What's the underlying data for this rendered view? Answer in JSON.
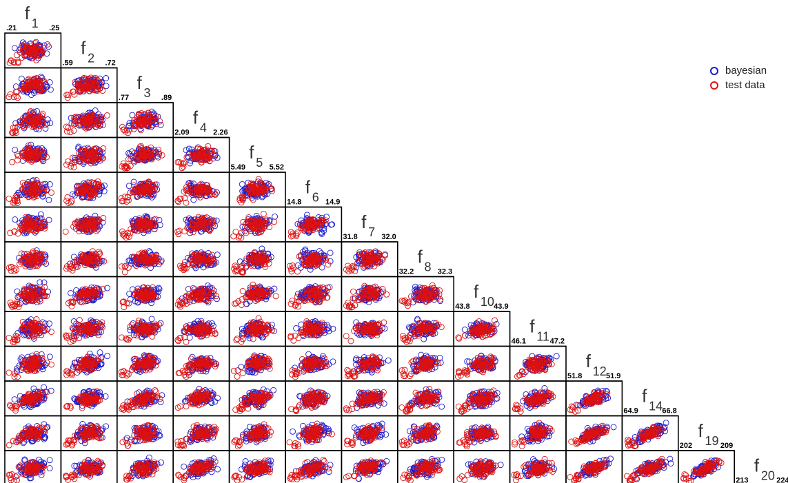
{
  "chart_data": {
    "type": "scatter",
    "layout": "lower-triangular scatter-plot matrix",
    "variables": [
      {
        "name": "f",
        "subscript": "1",
        "min_label": ".21",
        "max_label": ".25"
      },
      {
        "name": "f",
        "subscript": "2",
        "min_label": ".59",
        "max_label": ".72"
      },
      {
        "name": "f",
        "subscript": "3",
        "min_label": ".77",
        "max_label": ".89"
      },
      {
        "name": "f",
        "subscript": "4",
        "min_label": "2.09",
        "max_label": "2.26"
      },
      {
        "name": "f",
        "subscript": "5",
        "min_label": "5.49",
        "max_label": "5.52"
      },
      {
        "name": "f",
        "subscript": "6",
        "min_label": "14.8",
        "max_label": "14.9"
      },
      {
        "name": "f",
        "subscript": "7",
        "min_label": "31.8",
        "max_label": "32.0"
      },
      {
        "name": "f",
        "subscript": "8",
        "min_label": "32.2",
        "max_label": "32.3"
      },
      {
        "name": "f",
        "subscript": "10",
        "min_label": "43.8",
        "max_label": "43.9"
      },
      {
        "name": "f",
        "subscript": "11",
        "min_label": "46.1",
        "max_label": "47.2"
      },
      {
        "name": "f",
        "subscript": "12",
        "min_label": "51.8",
        "max_label": "51.9"
      },
      {
        "name": "f",
        "subscript": "14",
        "min_label": "64.9",
        "max_label": "66.8"
      },
      {
        "name": "f",
        "subscript": "19",
        "min_label": "202",
        "max_label": "209"
      },
      {
        "name": "f",
        "subscript": "20",
        "min_label": "213",
        "max_label": "224"
      }
    ],
    "series": [
      {
        "name": "bayesian",
        "color": "#1a1acc",
        "marker": "open-circle"
      },
      {
        "name": "test data",
        "color": "#dd1111",
        "marker": "open-circle"
      }
    ],
    "points_per_series_per_panel": 70,
    "note_values": "each panel shows a cloud of ~70 open-circle points per series; red test data shows more outliers toward lower-left",
    "grid": false,
    "legend": {
      "position": "top-right"
    }
  },
  "legend": {
    "items": [
      {
        "label": "bayesian",
        "color": "#1a1acc"
      },
      {
        "label": "test data",
        "color": "#dd1111"
      }
    ]
  }
}
